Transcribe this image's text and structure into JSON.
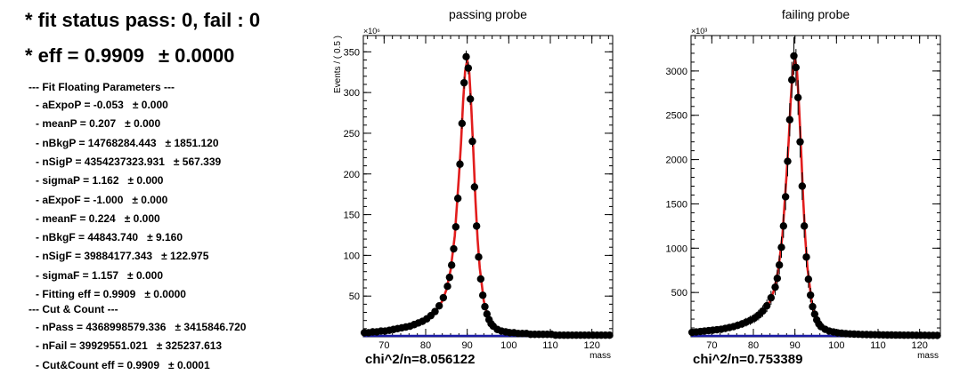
{
  "text_panel": {
    "fit_status": "* fit status pass: 0, fail : 0",
    "eff_line": "* eff = 0.9909",
    "eff_err": "± 0.0000",
    "floating_header": "--- Fit Floating Parameters ---",
    "params": [
      {
        "label": "- aExpoP = -0.053",
        "err": "± 0.000"
      },
      {
        "label": "- meanP = 0.207",
        "err": "± 0.000"
      },
      {
        "label": "- nBkgP = 14768284.443",
        "err": "± 1851.120"
      },
      {
        "label": "- nSigP = 4354237323.931",
        "err": "± 567.339"
      },
      {
        "label": "- sigmaP = 1.162",
        "err": "± 0.000"
      },
      {
        "label": "- aExpoF = -1.000",
        "err": "± 0.000"
      },
      {
        "label": "- meanF = 0.224",
        "err": "± 0.000"
      },
      {
        "label": "- nBkgF = 44843.740",
        "err": "± 9.160"
      },
      {
        "label": "- nSigF = 39884177.343",
        "err": "± 122.975"
      },
      {
        "label": "- sigmaF = 1.157",
        "err": "± 0.000"
      },
      {
        "label": "- Fitting eff = 0.9909",
        "err": "± 0.0000"
      }
    ],
    "cut_header": "--- Cut & Count ---",
    "cut_params": [
      {
        "label": "- nPass = 4368998579.336",
        "err": "± 3415846.720"
      },
      {
        "label": "- nFail = 39929551.021",
        "err": "± 325237.613"
      },
      {
        "label": "- Cut&Count eff = 0.9909",
        "err": "± 0.0001"
      }
    ]
  },
  "chart_data": [
    {
      "type": "scatter",
      "title": "passing probe",
      "xlabel": "mass",
      "ylabel": "Events / ( 0.5 )",
      "y_multiplier_label": "×10⁶",
      "chi2_label": "chi^2/n=8.056122",
      "xlim": [
        65,
        125
      ],
      "ylim": [
        0,
        370
      ],
      "x_ticks": [
        70,
        80,
        90,
        100,
        110,
        120
      ],
      "y_ticks": [
        50,
        100,
        150,
        200,
        250,
        300,
        350
      ],
      "data": {
        "x": [
          65.25,
          66.25,
          67.25,
          68.25,
          69.25,
          70.25,
          71.25,
          72.25,
          73.25,
          74.25,
          75.25,
          76.25,
          77.25,
          78.25,
          79.25,
          80.25,
          81.25,
          82.25,
          83.25,
          84.25,
          85.25,
          85.75,
          86.25,
          86.75,
          87.25,
          87.75,
          88.25,
          88.75,
          89.25,
          89.75,
          90.25,
          90.75,
          91.25,
          91.75,
          92.25,
          92.75,
          93.25,
          93.75,
          94.25,
          94.75,
          95.25,
          95.75,
          96.25,
          97.25,
          98.25,
          99.25,
          100.25,
          101.25,
          102.25,
          103.25,
          104.25,
          105.25,
          106.25,
          107.25,
          108.25,
          109.25,
          110.25,
          111.25,
          112.25,
          113.25,
          114.25,
          115.25,
          116.25,
          117.25,
          118.25,
          119.25,
          120.25,
          121.25,
          122.25,
          123.25,
          124.25
        ],
        "y": [
          5,
          5,
          6,
          6,
          7,
          7,
          8,
          9,
          10,
          11,
          12,
          13,
          15,
          17,
          19,
          22,
          26,
          31,
          38,
          48,
          62,
          73,
          88,
          108,
          135,
          170,
          212,
          262,
          312,
          344,
          330,
          292,
          240,
          184,
          136,
          98,
          71,
          51,
          37,
          28,
          21,
          16,
          13,
          9,
          7,
          6,
          5,
          5,
          4,
          4,
          4,
          3,
          3,
          3,
          3,
          3,
          3,
          2,
          2,
          2,
          2,
          2,
          2,
          2,
          2,
          2,
          2,
          2,
          2,
          2,
          2
        ]
      },
      "fit": {
        "x": [
          65,
          70,
          75,
          78,
          80,
          82,
          84,
          85,
          86,
          87,
          88,
          88.5,
          89,
          89.5,
          90,
          90.5,
          91,
          91.5,
          92,
          92.5,
          93,
          94,
          95,
          96,
          97,
          98,
          100,
          105,
          110,
          115,
          120,
          125
        ],
        "y": [
          5,
          7,
          11,
          16,
          20,
          28,
          44,
          58,
          82,
          124,
          196,
          238,
          288,
          326,
          340,
          324,
          280,
          224,
          166,
          120,
          85,
          44,
          23,
          14,
          10,
          7,
          5,
          3,
          3,
          2,
          2,
          2
        ]
      }
    },
    {
      "type": "scatter",
      "title": "failing probe",
      "xlabel": "mass",
      "ylabel": "",
      "y_multiplier_label": "×10³",
      "chi2_label": "chi^2/n=0.753389",
      "xlim": [
        65,
        125
      ],
      "ylim": [
        0,
        3400
      ],
      "x_ticks": [
        70,
        80,
        90,
        100,
        110,
        120
      ],
      "y_ticks": [
        500,
        1000,
        1500,
        2000,
        2500,
        3000
      ],
      "data": {
        "x": [
          65.25,
          66.25,
          67.25,
          68.25,
          69.25,
          70.25,
          71.25,
          72.25,
          73.25,
          74.25,
          75.25,
          76.25,
          77.25,
          78.25,
          79.25,
          80.25,
          81.25,
          82.25,
          83.25,
          84.25,
          85.25,
          85.75,
          86.25,
          86.75,
          87.25,
          87.75,
          88.25,
          88.75,
          89.25,
          89.75,
          90.25,
          90.75,
          91.25,
          91.75,
          92.25,
          92.75,
          93.25,
          93.75,
          94.25,
          94.75,
          95.25,
          95.75,
          96.25,
          97.25,
          98.25,
          99.25,
          100.25,
          101.25,
          102.25,
          103.25,
          104.25,
          105.25,
          106.25,
          107.25,
          108.25,
          109.25,
          110.25,
          111.25,
          112.25,
          113.25,
          114.25,
          115.25,
          116.25,
          117.25,
          118.25,
          119.25,
          120.25,
          121.25,
          122.25,
          123.25,
          124.25
        ],
        "y": [
          50,
          55,
          60,
          65,
          70,
          75,
          80,
          85,
          95,
          105,
          115,
          130,
          145,
          165,
          185,
          210,
          245,
          290,
          350,
          440,
          560,
          660,
          810,
          1010,
          1250,
          1580,
          1980,
          2450,
          2900,
          3170,
          3040,
          2700,
          2200,
          1700,
          1250,
          900,
          650,
          470,
          340,
          255,
          190,
          145,
          115,
          85,
          65,
          55,
          45,
          40,
          35,
          32,
          30,
          28,
          26,
          25,
          24,
          23,
          22,
          21,
          20,
          20,
          19,
          19,
          18,
          18,
          18,
          17,
          17,
          17,
          16,
          16,
          16
        ]
      },
      "fit": {
        "x": [
          65,
          70,
          75,
          78,
          80,
          82,
          84,
          85,
          86,
          87,
          88,
          88.5,
          89,
          89.5,
          90,
          90.5,
          91,
          91.5,
          92,
          92.5,
          93,
          94,
          95,
          96,
          97,
          98,
          100,
          105,
          110,
          115,
          120,
          125
        ],
        "y": [
          50,
          70,
          105,
          150,
          190,
          265,
          400,
          530,
          760,
          1150,
          1830,
          2220,
          2680,
          3020,
          3150,
          3000,
          2600,
          2080,
          1540,
          1110,
          780,
          410,
          215,
          130,
          92,
          68,
          48,
          29,
          22,
          19,
          17,
          16
        ]
      }
    }
  ]
}
